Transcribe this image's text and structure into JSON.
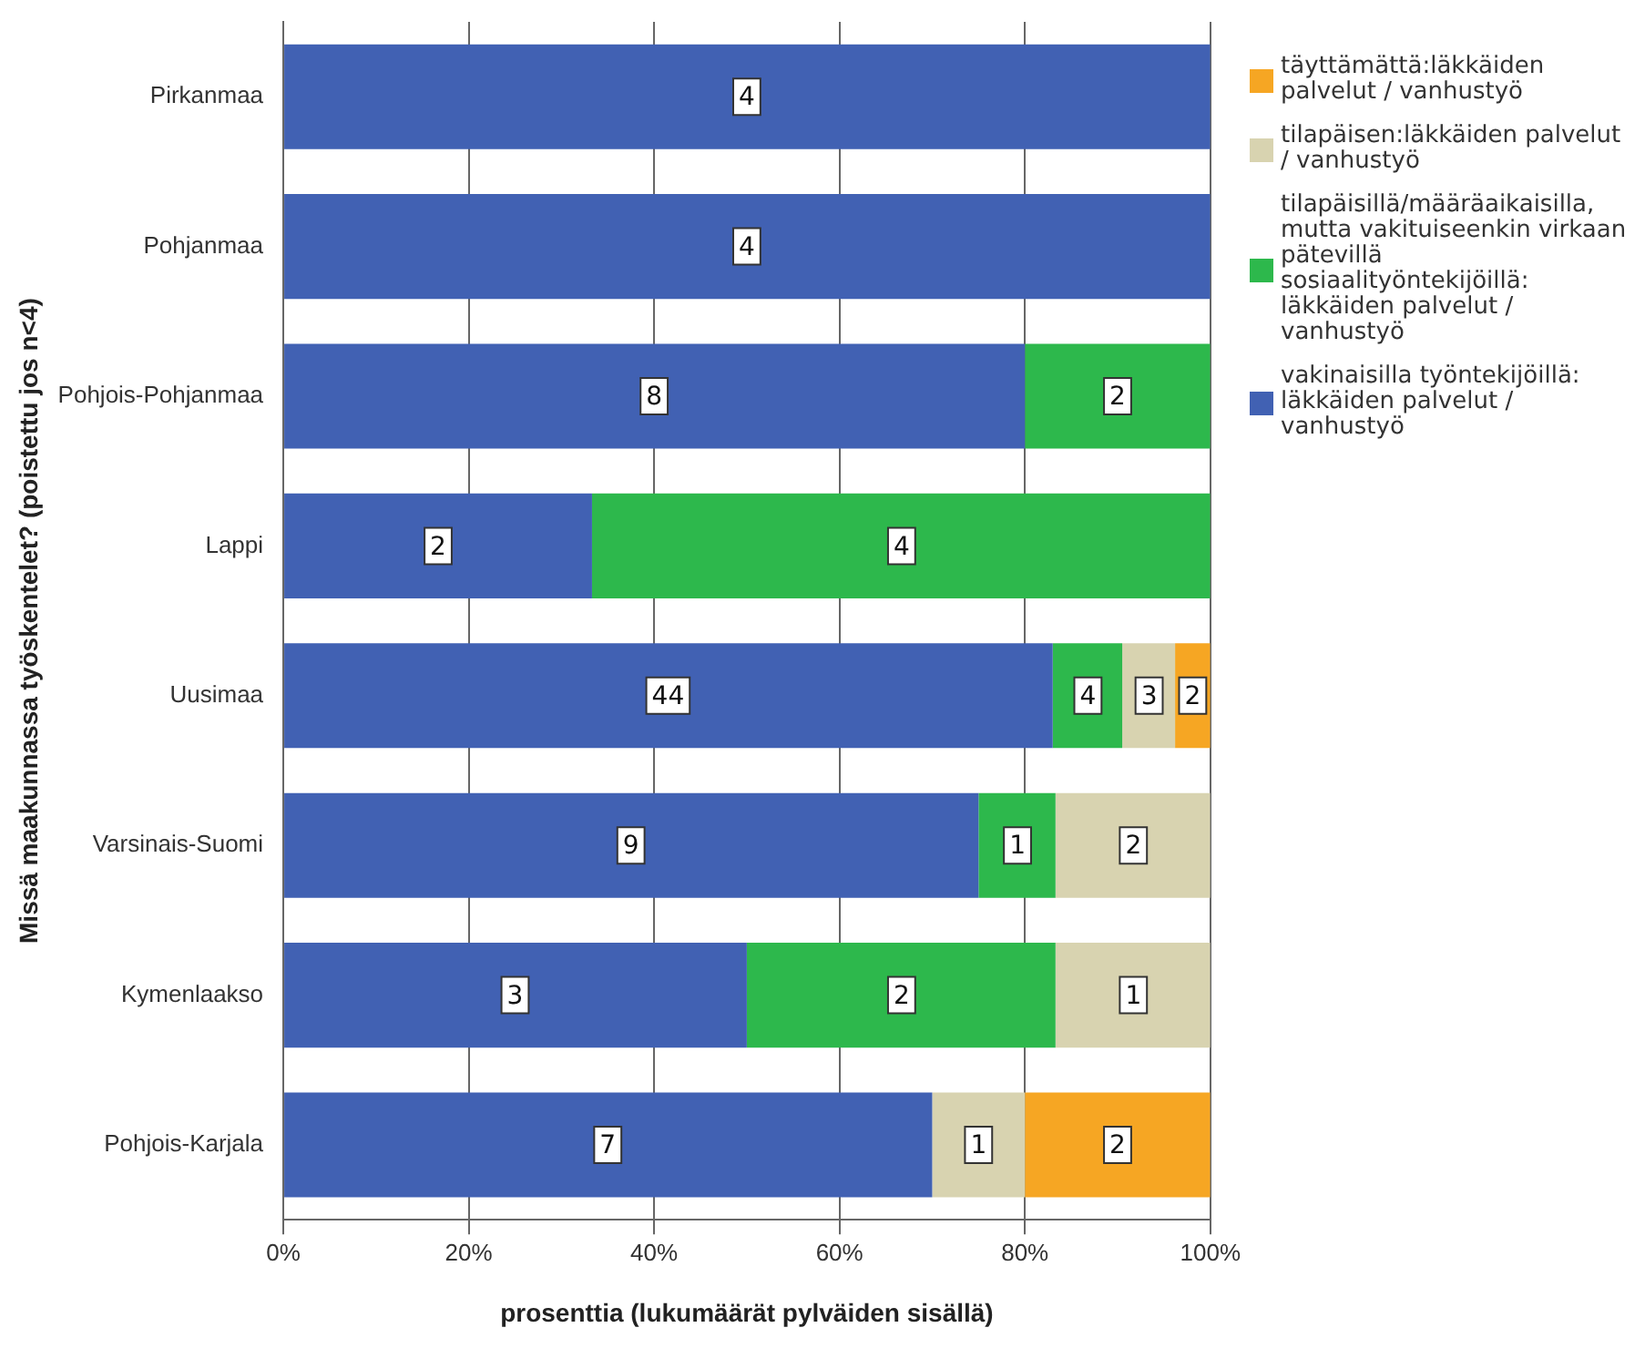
{
  "chart_data": {
    "type": "bar",
    "orientation": "horizontal",
    "stacked": true,
    "xlabel": "prosenttia (lukumäärät pylväiden sisällä)",
    "ylabel": "Missä maakunnassa työskentelet? (poistettu jos n<4)",
    "categories": [
      "Pirkanmaa",
      "Pohjanmaa",
      "Pohjois-Pohjanmaa",
      "Lappi",
      "Uusimaa",
      "Varsinais-Suomi",
      "Kymenlaakso",
      "Pohjois-Karjala"
    ],
    "xlim": [
      0,
      100
    ],
    "xticks": [
      {
        "value": 0,
        "label": "0%"
      },
      {
        "value": 20,
        "label": "20%"
      },
      {
        "value": 40,
        "label": "40%"
      },
      {
        "value": 60,
        "label": "60%"
      },
      {
        "value": 80,
        "label": "80%"
      },
      {
        "value": 100,
        "label": "100%"
      }
    ],
    "grid": "x",
    "legend": "right",
    "series": [
      {
        "name": "vakinaisilla työntekijöillä: läkkäiden palvelut / vanhustyö",
        "color": "#4161b3",
        "values": [
          100,
          100,
          80,
          33.3,
          83,
          75,
          50,
          70
        ]
      },
      {
        "name": "tilapäisillä/määräaikaisilla, mutta vakituiseenkin virkaan pätevillä sosiaalityöntekijöillä: läkkäiden palvelut / vanhustyö",
        "color": "#2db84c",
        "values": [
          0,
          0,
          20,
          66.7,
          7.5,
          8.3,
          33.3,
          0
        ]
      },
      {
        "name": "tilapäisen:läkkäiden palvelut / vanhustyö",
        "color": "#d8d3b0",
        "values": [
          0,
          0,
          0,
          0,
          5.7,
          16.7,
          16.7,
          10
        ]
      },
      {
        "name": "täyttämättä:läkkäiden palvelut / vanhustyö",
        "color": "#f6a623",
        "values": [
          0,
          0,
          0,
          0,
          3.8,
          0,
          0,
          20
        ]
      }
    ],
    "annotations": [
      {
        "text": "4",
        "x": 50,
        "y": "Pirkanmaa"
      },
      {
        "text": "4",
        "x": 50,
        "y": "Pohjanmaa"
      },
      {
        "text": "8",
        "x": 40,
        "y": "Pohjois-Pohjanmaa"
      },
      {
        "text": "2",
        "x": 90,
        "y": "Pohjois-Pohjanmaa"
      },
      {
        "text": "2",
        "x": 16.7,
        "y": "Lappi"
      },
      {
        "text": "4",
        "x": 66.7,
        "y": "Lappi"
      },
      {
        "text": "44",
        "x": 41.5,
        "y": "Uusimaa"
      },
      {
        "text": "4",
        "x": 86.8,
        "y": "Uusimaa"
      },
      {
        "text": "3",
        "x": 93.4,
        "y": "Uusimaa"
      },
      {
        "text": "2",
        "x": 98.1,
        "y": "Uusimaa"
      },
      {
        "text": "9",
        "x": 37.5,
        "y": "Varsinais-Suomi"
      },
      {
        "text": "1",
        "x": 79.2,
        "y": "Varsinais-Suomi"
      },
      {
        "text": "2",
        "x": 91.7,
        "y": "Varsinais-Suomi"
      },
      {
        "text": "3",
        "x": 25,
        "y": "Kymenlaakso"
      },
      {
        "text": "2",
        "x": 66.7,
        "y": "Kymenlaakso"
      },
      {
        "text": "1",
        "x": 91.7,
        "y": "Kymenlaakso"
      },
      {
        "text": "7",
        "x": 35,
        "y": "Pohjois-Karjala"
      },
      {
        "text": "1",
        "x": 75,
        "y": "Pohjois-Karjala"
      },
      {
        "text": "2",
        "x": 90,
        "y": "Pohjois-Karjala"
      }
    ]
  }
}
